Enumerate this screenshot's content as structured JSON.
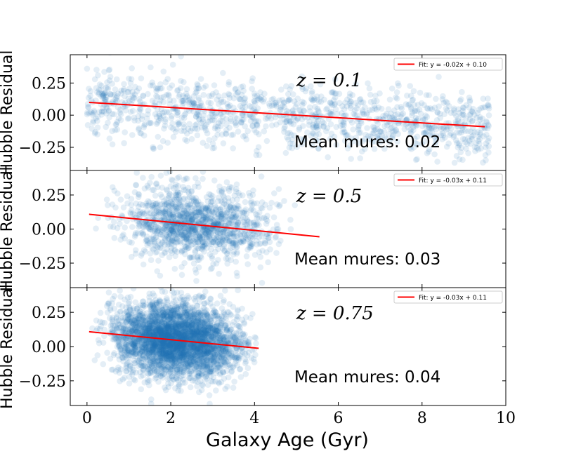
{
  "chart_data": {
    "type": "scatter",
    "xlabel": "Galaxy Age (Gyr)",
    "x_ticks": [
      0,
      2,
      4,
      6,
      8,
      10
    ],
    "x_tick_labels": [
      "0",
      "2",
      "4",
      "6",
      "8",
      "10"
    ],
    "xlim": [
      -0.4,
      10.0
    ],
    "point_color": "#1f77b4",
    "fit_color": "#ff0000",
    "panels": [
      {
        "z_label": "z = 0.1",
        "ylabel": "Hubble Residual",
        "ylim": [
          -0.43,
          0.47
        ],
        "y_ticks": [
          -0.25,
          0.0,
          0.25
        ],
        "y_tick_labels": [
          "−0.25",
          "0.00",
          "0.25"
        ],
        "legend": "Fit: y = -0.02x + 0.10",
        "mean_text": "Mean mures: 0.02",
        "fit": {
          "slope": -0.02,
          "intercept": 0.1,
          "x_start": 0.05,
          "x_end": 9.5
        },
        "age_range": [
          0.0,
          9.6
        ],
        "n_points": 1200,
        "spread": 0.13,
        "seed": 11
      },
      {
        "z_label": "z = 0.5",
        "ylabel": "Hubble Residual",
        "ylim": [
          -0.43,
          0.43
        ],
        "y_ticks": [
          -0.25,
          0.0,
          0.25
        ],
        "y_tick_labels": [
          "−0.25",
          "0.00",
          "0.25"
        ],
        "legend": "Fit: y = -0.03x + 0.11",
        "mean_text": "Mean mures: 0.03",
        "fit": {
          "slope": -0.03,
          "intercept": 0.11,
          "x_start": 0.05,
          "x_end": 5.55
        },
        "age_range": [
          0.0,
          5.0
        ],
        "n_points": 1300,
        "spread": 0.13,
        "seed": 23
      },
      {
        "z_label": "z = 0.75",
        "ylabel": "Hubble Residual",
        "ylim": [
          -0.43,
          0.43
        ],
        "y_ticks": [
          -0.25,
          0.0,
          0.25
        ],
        "y_tick_labels": [
          "−0.25",
          "0.00",
          "0.25"
        ],
        "legend": "Fit: y = -0.03x + 0.11",
        "mean_text": "Mean mures: 0.04",
        "fit": {
          "slope": -0.03,
          "intercept": 0.11,
          "x_start": 0.05,
          "x_end": 4.1
        },
        "age_range": [
          0.0,
          4.1
        ],
        "n_points": 3500,
        "spread": 0.13,
        "seed": 37
      }
    ]
  }
}
